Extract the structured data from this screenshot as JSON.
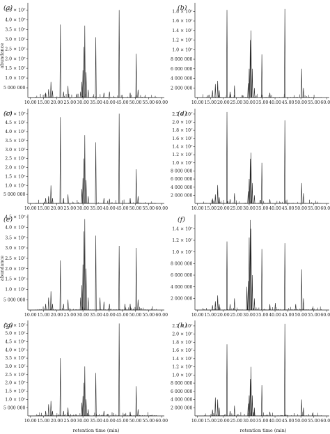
{
  "chart_data": {
    "type": "line",
    "x_tick_labels": [
      "10.00",
      "15.00",
      "20.00",
      "25.00",
      "30.00",
      "35.00",
      "40.00",
      "45.00",
      "50.00",
      "55.00",
      "60.00"
    ],
    "xlim": [
      9.0,
      61.0
    ],
    "xlabel": "retention time (min)",
    "ylabel": "abundance",
    "panels": [
      {
        "label": "(a)",
        "ylim": [
          0,
          48000000.0
        ],
        "yticks": [
          {
            "value": 5000000,
            "label": "5 000 000"
          },
          {
            "value": 10000000,
            "label": "1.0 × 10⁷"
          },
          {
            "value": 15000000,
            "label": "1.5 × 10⁷"
          },
          {
            "value": 20000000,
            "label": "2.0 × 10⁷"
          },
          {
            "value": 25000000,
            "label": "2.5 × 10⁷"
          },
          {
            "value": 30000000,
            "label": "3.0 × 10⁷"
          },
          {
            "value": 35000000,
            "label": "3.5 × 10⁷"
          },
          {
            "value": 40000000,
            "label": "4.0 × 10⁷"
          },
          {
            "value": 45000000,
            "label": "4.5 × 10⁷"
          }
        ],
        "peaks": [
          [
            15.8,
            2500000
          ],
          [
            16.9,
            4200000
          ],
          [
            17.8,
            8000000
          ],
          [
            18.4,
            3500000
          ],
          [
            21.4,
            37500000
          ],
          [
            22.6,
            3000000
          ],
          [
            24.3,
            6000000
          ],
          [
            29.1,
            3000000
          ],
          [
            29.6,
            8000000
          ],
          [
            30.0,
            14000000
          ],
          [
            30.4,
            26000000
          ],
          [
            30.7,
            37000000
          ],
          [
            31.2,
            13000000
          ],
          [
            32.0,
            4000000
          ],
          [
            34.9,
            31000000
          ],
          [
            38.0,
            2500000
          ],
          [
            40.1,
            3000000
          ],
          [
            43.8,
            45000000
          ],
          [
            48.0,
            2500000
          ],
          [
            50.3,
            22500000
          ],
          [
            51.0,
            4000000
          ]
        ]
      },
      {
        "label": "(b)",
        "ylim": [
          0,
          19500000.0
        ],
        "yticks": [
          {
            "value": 2000000,
            "label": "2 000 000"
          },
          {
            "value": 4000000,
            "label": "4 000 000"
          },
          {
            "value": 6000000,
            "label": "6 000 000"
          },
          {
            "value": 8000000,
            "label": "8 000 000"
          },
          {
            "value": 10000000,
            "label": "1.0 × 10⁷"
          },
          {
            "value": 12000000,
            "label": "1.2 × 10⁷"
          },
          {
            "value": 14000000,
            "label": "1.4 × 10⁷"
          },
          {
            "value": 16000000,
            "label": "1.6 × 10⁷"
          },
          {
            "value": 18000000,
            "label": "1.8 × 10⁷"
          }
        ],
        "peaks": [
          [
            15.8,
            1500000
          ],
          [
            16.9,
            2800000
          ],
          [
            17.8,
            3500000
          ],
          [
            18.4,
            1500000
          ],
          [
            21.4,
            18300000
          ],
          [
            22.6,
            1200000
          ],
          [
            24.3,
            2500000
          ],
          [
            29.6,
            3000000
          ],
          [
            30.0,
            6000000
          ],
          [
            30.4,
            12000000
          ],
          [
            30.7,
            14000000
          ],
          [
            31.2,
            6000000
          ],
          [
            32.0,
            2000000
          ],
          [
            34.9,
            9000000
          ],
          [
            38.0,
            1000000
          ],
          [
            43.8,
            18500000
          ],
          [
            50.3,
            6000000
          ],
          [
            51.0,
            2000000
          ]
        ]
      },
      {
        "label": "(c)",
        "ylim": [
          0,
          52000000.0
        ],
        "yticks": [
          {
            "value": 5000000,
            "label": "5 000 000"
          },
          {
            "value": 10000000,
            "label": "1.0 × 10⁷"
          },
          {
            "value": 15000000,
            "label": "1.5 × 10⁷"
          },
          {
            "value": 20000000,
            "label": "2.0 × 10⁷"
          },
          {
            "value": 25000000,
            "label": "2.5 × 10⁷"
          },
          {
            "value": 30000000,
            "label": "3.0 × 10⁷"
          },
          {
            "value": 35000000,
            "label": "3.5 × 10⁷"
          },
          {
            "value": 40000000,
            "label": "4.0 × 10⁷"
          },
          {
            "value": 45000000,
            "label": "4.5 × 10⁷"
          },
          {
            "value": 50000000,
            "label": "5.0 × 10⁷"
          }
        ],
        "peaks": [
          [
            15.8,
            3000000
          ],
          [
            16.9,
            4000000
          ],
          [
            17.8,
            10000000
          ],
          [
            18.4,
            3000000
          ],
          [
            21.4,
            48000000
          ],
          [
            22.6,
            3000000
          ],
          [
            24.3,
            5000000
          ],
          [
            29.6,
            8000000
          ],
          [
            30.0,
            14000000
          ],
          [
            30.4,
            25000000
          ],
          [
            30.7,
            38000000
          ],
          [
            31.2,
            13000000
          ],
          [
            32.0,
            4000000
          ],
          [
            34.9,
            34000000
          ],
          [
            38.0,
            3000000
          ],
          [
            40.1,
            2500000
          ],
          [
            43.8,
            50000000
          ],
          [
            48.0,
            3000000
          ],
          [
            50.3,
            19000000
          ],
          [
            51.0,
            4000000
          ]
        ]
      },
      {
        "label": "(d)",
        "ylim": [
          0,
          23000000.0
        ],
        "yticks": [
          {
            "value": 2000000,
            "label": "2 000 000"
          },
          {
            "value": 4000000,
            "label": "4 000 000"
          },
          {
            "value": 6000000,
            "label": "6 000 000"
          },
          {
            "value": 8000000,
            "label": "8 000 000"
          },
          {
            "value": 10000000,
            "label": "1.0 × 10⁷"
          },
          {
            "value": 12000000,
            "label": "1.2 × 10⁷"
          },
          {
            "value": 14000000,
            "label": "1.4 × 10⁷"
          },
          {
            "value": 16000000,
            "label": "1.6 × 10⁷"
          },
          {
            "value": 18000000,
            "label": "1.8 × 10⁷"
          },
          {
            "value": 20000000,
            "label": "2.0 × 10⁷"
          },
          {
            "value": 22000000,
            "label": "2.2 × 10⁷"
          }
        ],
        "peaks": [
          [
            15.8,
            1200000
          ],
          [
            16.9,
            2200000
          ],
          [
            17.8,
            4500000
          ],
          [
            18.4,
            1500000
          ],
          [
            21.4,
            22500000
          ],
          [
            22.6,
            1000000
          ],
          [
            24.3,
            2500000
          ],
          [
            29.6,
            3000000
          ],
          [
            30.0,
            6000000
          ],
          [
            30.4,
            11000000
          ],
          [
            30.7,
            12500000
          ],
          [
            31.2,
            5000000
          ],
          [
            32.0,
            2000000
          ],
          [
            34.9,
            10000000
          ],
          [
            38.0,
            1000000
          ],
          [
            43.8,
            20500000
          ],
          [
            50.3,
            5000000
          ],
          [
            51.0,
            2500000
          ]
        ]
      },
      {
        "label": "(e)",
        "ylim": [
          0,
          45500000.0
        ],
        "yticks": [
          {
            "value": 5000000,
            "label": "5 000 000"
          },
          {
            "value": 10000000,
            "label": "1.0 × 10⁷"
          },
          {
            "value": 15000000,
            "label": "1.5 × 10⁷"
          },
          {
            "value": 20000000,
            "label": "2.0 × 10⁷"
          },
          {
            "value": 25000000,
            "label": "2.5 × 10⁷"
          },
          {
            "value": 30000000,
            "label": "3.0 × 10⁷"
          },
          {
            "value": 35000000,
            "label": "3.5 × 10⁷"
          },
          {
            "value": 40000000,
            "label": "4.0 × 10⁷"
          },
          {
            "value": 45000000,
            "label": "4.5 × 10⁷"
          }
        ],
        "peaks": [
          [
            15.8,
            3000000
          ],
          [
            16.9,
            6000000
          ],
          [
            17.8,
            9000000
          ],
          [
            18.4,
            3000000
          ],
          [
            21.4,
            24000000
          ],
          [
            22.6,
            3000000
          ],
          [
            24.3,
            5000000
          ],
          [
            29.1,
            6000000
          ],
          [
            29.6,
            12000000
          ],
          [
            30.0,
            22000000
          ],
          [
            30.4,
            38000000
          ],
          [
            30.7,
            44000000
          ],
          [
            31.2,
            20000000
          ],
          [
            32.0,
            6000000
          ],
          [
            34.9,
            36000000
          ],
          [
            36.5,
            6000000
          ],
          [
            38.0,
            4000000
          ],
          [
            40.1,
            3000000
          ],
          [
            43.8,
            31000000
          ],
          [
            46.0,
            3000000
          ],
          [
            48.0,
            3000000
          ],
          [
            50.3,
            30000000
          ],
          [
            51.0,
            5000000
          ]
        ]
      },
      {
        "label": "(f)",
        "ylim": [
          0,
          16200000.0
        ],
        "yticks": [
          {
            "value": 2000000,
            "label": "2 000 000"
          },
          {
            "value": 4000000,
            "label": "4 000 000"
          },
          {
            "value": 6000000,
            "label": "6 000 000"
          },
          {
            "value": 8000000,
            "label": "8 000 000"
          },
          {
            "value": 10000000,
            "label": "1.0 × 10⁷"
          },
          {
            "value": 12000000,
            "label": "1.2 × 10⁷"
          },
          {
            "value": 14000000,
            "label": "1.4 × 10⁷"
          }
        ],
        "peaks": [
          [
            15.8,
            800000
          ],
          [
            16.9,
            1500000
          ],
          [
            17.8,
            2500000
          ],
          [
            18.4,
            1000000
          ],
          [
            21.4,
            11800000
          ],
          [
            22.6,
            1000000
          ],
          [
            24.3,
            2000000
          ],
          [
            29.1,
            4000000
          ],
          [
            29.6,
            5000000
          ],
          [
            30.0,
            12500000
          ],
          [
            30.4,
            15500000
          ],
          [
            30.7,
            14000000
          ],
          [
            31.2,
            6000000
          ],
          [
            32.0,
            2000000
          ],
          [
            34.9,
            10500000
          ],
          [
            38.0,
            1000000
          ],
          [
            40.1,
            1200000
          ],
          [
            43.8,
            11500000
          ],
          [
            48.0,
            1000000
          ],
          [
            50.3,
            7000000
          ],
          [
            51.0,
            2000000
          ]
        ]
      },
      {
        "label": "(g)",
        "ylim": [
          0,
          57000000.0
        ],
        "yticks": [
          {
            "value": 5000000,
            "label": "5 000 000"
          },
          {
            "value": 10000000,
            "label": "1.0 × 10⁷"
          },
          {
            "value": 15000000,
            "label": "1.5 × 10⁷"
          },
          {
            "value": 20000000,
            "label": "2.0 × 10⁷"
          },
          {
            "value": 25000000,
            "label": "2.5 × 10⁷"
          },
          {
            "value": 30000000,
            "label": "3.0 × 10⁷"
          },
          {
            "value": 35000000,
            "label": "3.5 × 10⁷"
          },
          {
            "value": 40000000,
            "label": "4.0 × 10⁷"
          },
          {
            "value": 45000000,
            "label": "4.5 × 10⁷"
          },
          {
            "value": 50000000,
            "label": "5.0 × 10⁷"
          },
          {
            "value": 55000000,
            "label": "5.5 × 10⁷"
          }
        ],
        "peaks": [
          [
            15.8,
            3000000
          ],
          [
            16.9,
            7000000
          ],
          [
            17.8,
            9000000
          ],
          [
            18.4,
            3000000
          ],
          [
            21.4,
            35000000
          ],
          [
            22.6,
            3000000
          ],
          [
            24.3,
            5000000
          ],
          [
            29.6,
            8000000
          ],
          [
            30.0,
            12000000
          ],
          [
            30.4,
            20000000
          ],
          [
            30.7,
            30000000
          ],
          [
            31.2,
            10000000
          ],
          [
            32.0,
            4000000
          ],
          [
            34.9,
            26000000
          ],
          [
            38.0,
            3000000
          ],
          [
            43.8,
            56000000
          ],
          [
            48.0,
            2500000
          ],
          [
            50.3,
            18000000
          ],
          [
            51.0,
            4000000
          ]
        ]
      },
      {
        "label": "(h)",
        "ylim": [
          0,
          23000000.0
        ],
        "yticks": [
          {
            "value": 2000000,
            "label": "2 000 000"
          },
          {
            "value": 4000000,
            "label": "4 000 000"
          },
          {
            "value": 6000000,
            "label": "6 000 000"
          },
          {
            "value": 8000000,
            "label": "8 000 000"
          },
          {
            "value": 10000000,
            "label": "1.0 × 10⁷"
          },
          {
            "value": 12000000,
            "label": "1.2 × 10⁷"
          },
          {
            "value": 14000000,
            "label": "1.4 × 10⁷"
          },
          {
            "value": 16000000,
            "label": "1.6 × 10⁷"
          },
          {
            "value": 18000000,
            "label": "1.8 × 10⁷"
          },
          {
            "value": 20000000,
            "label": "2.0 × 10⁷"
          },
          {
            "value": 22000000,
            "label": "2.2 × 10⁷"
          }
        ],
        "peaks": [
          [
            15.8,
            1500000
          ],
          [
            16.9,
            4500000
          ],
          [
            17.8,
            4000000
          ],
          [
            18.4,
            2000000
          ],
          [
            21.4,
            17500000
          ],
          [
            22.6,
            1200000
          ],
          [
            24.3,
            2500000
          ],
          [
            29.6,
            3000000
          ],
          [
            30.0,
            5000000
          ],
          [
            30.4,
            9000000
          ],
          [
            30.7,
            12000000
          ],
          [
            31.2,
            5000000
          ],
          [
            32.0,
            2000000
          ],
          [
            34.9,
            7500000
          ],
          [
            38.0,
            1000000
          ],
          [
            43.8,
            22500000
          ],
          [
            50.3,
            4000000
          ],
          [
            51.0,
            2000000
          ]
        ]
      }
    ]
  }
}
